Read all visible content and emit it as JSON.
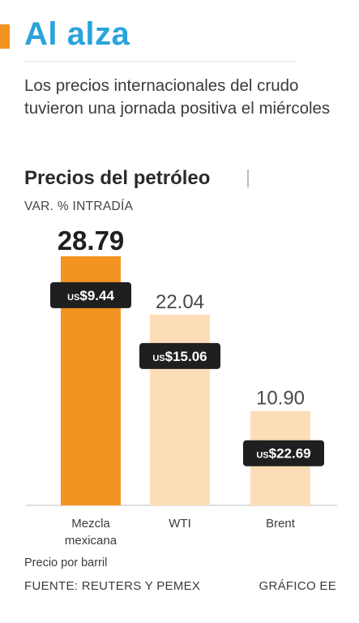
{
  "header": {
    "title": "Al alza",
    "description": "Los precios internacionales del crudo tuvieron una jornada positiva el miércoles"
  },
  "chart_data": {
    "type": "bar",
    "title": "Precios del petróleo",
    "subtitle": "VAR. % INTRADÍA",
    "categories": [
      [
        "Mezcla",
        "mexicana"
      ],
      [
        "WTI"
      ],
      [
        "Brent"
      ]
    ],
    "values": [
      28.79,
      22.04,
      10.9
    ],
    "value_labels": [
      "28.79",
      "22.04",
      "10.90"
    ],
    "price_labels": [
      "US$9.44",
      "US$15.06",
      "US$22.69"
    ],
    "price_prefix": "US",
    "price_values": [
      "9.44",
      "15.06",
      "22.69"
    ],
    "ylim": [
      0,
      30
    ],
    "grid": false,
    "colors": {
      "highlight_bar": "#f39322",
      "bar": "#fdddb7",
      "badge": "#1f1f1f",
      "badge_text": "#ffffff",
      "baseline": "#bfbfbf"
    }
  },
  "footer": {
    "note": "Precio por barril",
    "source": "FUENTE: REUTERS Y PEMEX",
    "credit": "GRÁFICO EE"
  }
}
